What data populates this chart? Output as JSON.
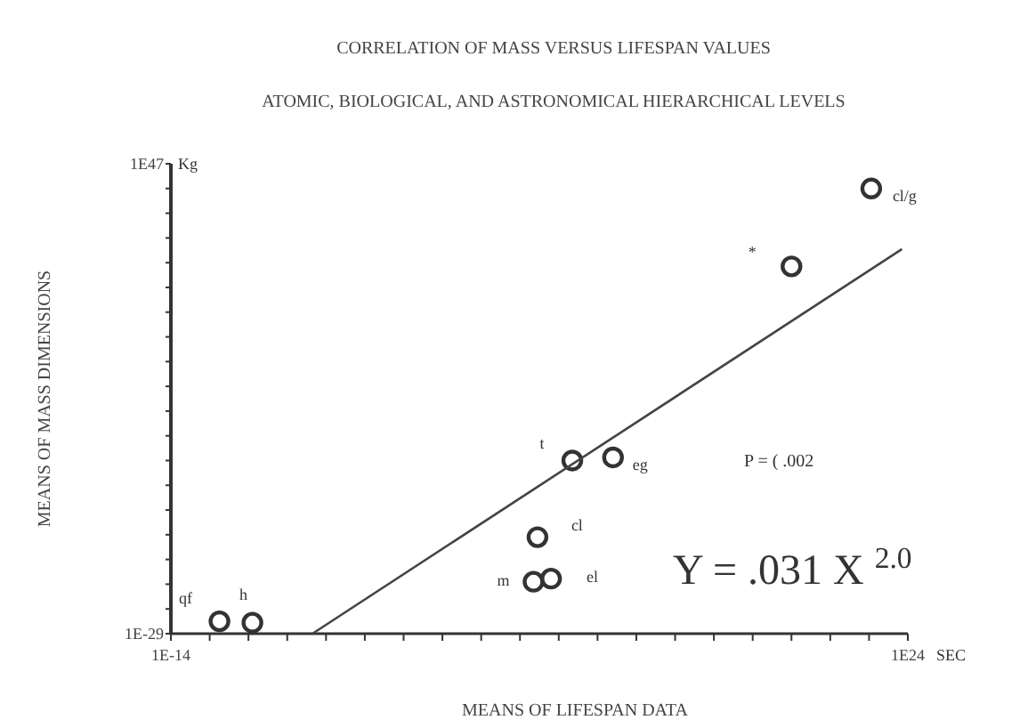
{
  "chart_data": {
    "type": "scatter",
    "title": "CORRELATION OF MASS VERSUS LIFESPAN VALUES",
    "subtitle": "ATOMIC, BIOLOGICAL, AND ASTRONOMICAL HIERARCHICAL LEVELS",
    "xlabel": "MEANS OF LIFESPAN DATA",
    "ylabel": "MEANS OF MASS DIMENSIONS",
    "log": "xy",
    "grid": false,
    "xlim": [
      1e-14,
      1e+24
    ],
    "ylim": [
      1e-29,
      1e+47
    ],
    "xticks": [
      {
        "value": 1e-14,
        "label": "1E-14"
      },
      {
        "value": 1e-12,
        "label": null
      },
      {
        "value": 1e-10,
        "label": null
      },
      {
        "value": 1e-08,
        "label": null
      },
      {
        "value": 1e-06,
        "label": null
      },
      {
        "value": 0.0001,
        "label": null
      },
      {
        "value": 0.01,
        "label": null
      },
      {
        "value": 1,
        "label": null
      },
      {
        "value": 100.0,
        "label": null
      },
      {
        "value": 10000.0,
        "label": null
      },
      {
        "value": 1000000.0,
        "label": null
      },
      {
        "value": 100000000.0,
        "label": null
      },
      {
        "value": 10000000000.0,
        "label": null
      },
      {
        "value": 1000000000000.0,
        "label": null
      },
      {
        "value": 100000000000000.0,
        "label": null
      },
      {
        "value": 1e+16,
        "label": null
      },
      {
        "value": 1e+18,
        "label": null
      },
      {
        "value": 1e+20,
        "label": null
      },
      {
        "value": 1e+22,
        "label": null
      },
      {
        "value": 1e+24,
        "label": "1E24"
      }
    ],
    "yticks": [
      {
        "value": 1e-29,
        "label": "1E-29"
      },
      {
        "value": 1e-25,
        "label": null
      },
      {
        "value": 1e-21,
        "label": null
      },
      {
        "value": 1e-17,
        "label": null
      },
      {
        "value": 1e-13,
        "label": null
      },
      {
        "value": 1e-09,
        "label": null
      },
      {
        "value": 1e-05,
        "label": null
      },
      {
        "value": 0.1,
        "label": null
      },
      {
        "value": 1000.0,
        "label": null
      },
      {
        "value": 10000000.0,
        "label": null
      },
      {
        "value": 100000000000.0,
        "label": null
      },
      {
        "value": 1000000000000000.0,
        "label": null
      },
      {
        "value": 1e+19,
        "label": null
      },
      {
        "value": 1e+23,
        "label": null
      },
      {
        "value": 1e+27,
        "label": null
      },
      {
        "value": 1e+31,
        "label": null
      },
      {
        "value": 1e+35,
        "label": null
      },
      {
        "value": 1e+39,
        "label": null
      },
      {
        "value": 1e+43,
        "label": null
      },
      {
        "value": 1e+47,
        "label": "1E47"
      }
    ],
    "series": [
      {
        "color": "#333333",
        "marker": "circle",
        "x": [
          3.2e-12,
          1.6e-10,
          50000.0,
          400000.0,
          80000.0,
          5000000.0,
          630000000.0,
          1e+18,
          1.3e+22
        ],
        "values": [
          1e-27,
          6e-28,
          2.5e-21,
          8e-21,
          4e-14,
          0.1,
          0.32,
          2.5e+30,
          1e+43
        ]
      },
      {
        "type": "line",
        "color": "#444444",
        "x": [
          2e-07,
          5e+23
        ],
        "values": [
          1e-29,
          1.6e+33
        ]
      }
    ],
    "annotations": [
      {
        "text": "qf",
        "x": 3.2e-12,
        "y": 1e-27
      },
      {
        "text": "h",
        "x": 1.6e-10,
        "y": 6e-28
      },
      {
        "text": "m",
        "x": 50000.0,
        "y": 2.5e-21
      },
      {
        "text": "cl",
        "x": 80000.0,
        "y": 4e-14
      },
      {
        "text": "el",
        "x": 400000.0,
        "y": 8e-21
      },
      {
        "text": "t",
        "x": 5000000.0,
        "y": 0.1
      },
      {
        "text": "eg",
        "x": 630000000.0,
        "y": 0.32
      },
      {
        "text": "*",
        "x": 1e+18,
        "y": 2.5e+30
      },
      {
        "text": "cl/g",
        "x": 1.3e+22,
        "y": 1e+43
      },
      "P = ( .002",
      "Y = .031 X $^{2.0}$",
      "SEC",
      "Kg"
    ]
  }
}
